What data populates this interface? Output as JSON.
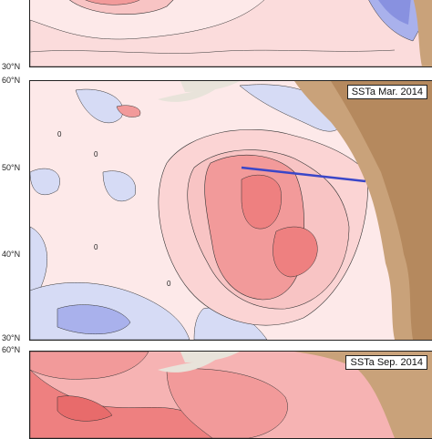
{
  "panels": [
    {
      "title": "",
      "lat_labels": [
        "30°N"
      ]
    },
    {
      "title": "SSTa Mar. 2014",
      "lat_labels": [
        "60°N",
        "50°N",
        "40°N",
        "30°N"
      ],
      "contour_labels": [
        "0",
        "0",
        "0",
        "0"
      ]
    },
    {
      "title": "SSTa Sep. 2014",
      "lat_labels": [
        "60°N"
      ]
    }
  ],
  "colors": {
    "warm_light": "#fde9e9",
    "warm_mid": "#f8c4c4",
    "warm_strong": "#f29a9a",
    "warm_core": "#ee8080",
    "cool": "#d6dbf5",
    "cool_strong": "#a9b1ec",
    "land": "#c9a27a",
    "transect": "#3a46c8"
  }
}
